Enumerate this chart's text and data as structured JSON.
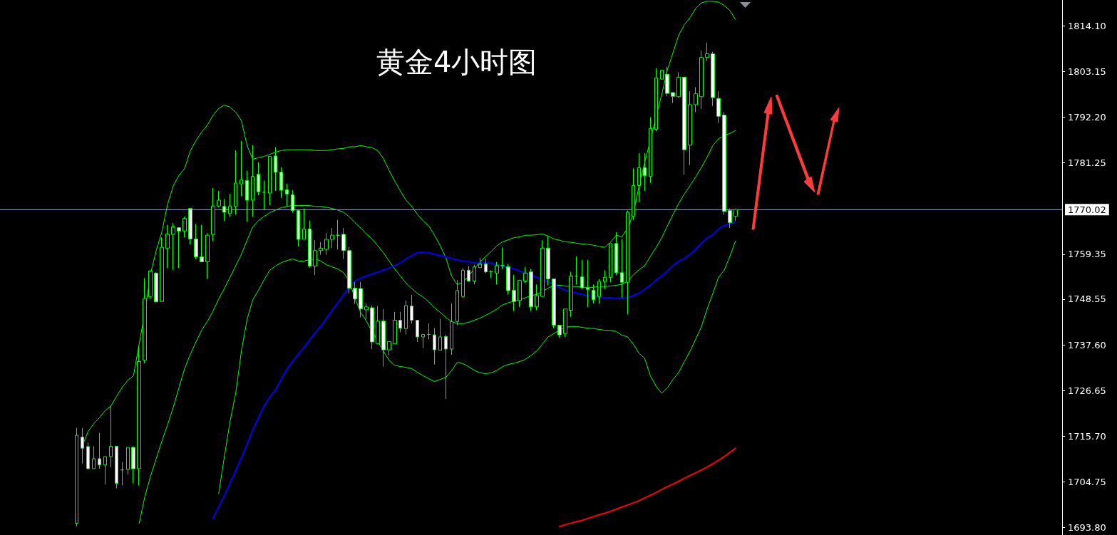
{
  "chart_data": {
    "type": "candlestick",
    "title": "黄金4小时图",
    "categories": [
      null,
      null,
      null,
      null,
      null,
      null,
      null,
      null,
      null,
      null,
      null,
      null,
      null,
      null,
      null,
      null,
      null,
      null,
      null,
      null,
      null,
      null,
      null,
      null,
      null,
      null,
      null,
      null,
      null,
      null,
      null,
      null,
      null,
      null,
      null,
      null,
      null,
      null,
      null,
      null,
      null,
      null,
      null,
      null,
      null,
      null,
      null,
      null,
      null,
      null,
      null,
      null,
      null,
      null,
      null,
      null,
      null,
      null,
      null,
      null,
      null,
      null,
      null,
      null,
      null,
      null,
      null,
      null,
      null,
      null,
      null,
      null,
      null,
      null,
      null,
      null,
      null,
      null,
      null,
      null,
      null,
      null,
      null,
      null,
      null,
      null,
      null,
      null,
      null,
      null,
      null,
      null,
      null,
      null,
      null,
      null,
      null,
      null,
      null,
      null,
      null,
      null,
      null,
      null,
      null,
      null,
      null,
      null,
      null,
      null,
      null,
      null,
      null,
      null,
      null,
      null,
      null
    ],
    "ohlc": [
      [
        1694.8,
        1717.7,
        1694.0,
        1715.9
      ],
      [
        1715.5,
        1717.7,
        1709.1,
        1712.8
      ],
      [
        1713.2,
        1714.2,
        1707.8,
        1707.9
      ],
      [
        1707.9,
        1713.3,
        1707.9,
        1710.3
      ],
      [
        1710.3,
        1716.5,
        1707.9,
        1708.8
      ],
      [
        1708.8,
        1710.8,
        1704.1,
        1710.8
      ],
      [
        1710.8,
        1722.9,
        1708.2,
        1713.3
      ],
      [
        1713.3,
        1713.3,
        1703.2,
        1704.4
      ],
      [
        1707.6,
        1709.5,
        1703.9,
        1707.6
      ],
      [
        1707.7,
        1713.0,
        1706.5,
        1713.0
      ],
      [
        1713.0,
        1713.3,
        1704.4,
        1707.9
      ],
      [
        1707.9,
        1737.4,
        1703.9,
        1733.6
      ],
      [
        1733.9,
        1753.6,
        1733.2,
        1748.7
      ],
      [
        1749.2,
        1755.5,
        1748.7,
        1755.3
      ],
      [
        1754.8,
        1755.0,
        1747.9,
        1747.9
      ],
      [
        1748.0,
        1763.4,
        1748.0,
        1761.0
      ],
      [
        1760.8,
        1766.4,
        1756.0,
        1764.2
      ],
      [
        1764.1,
        1766.8,
        1755.6,
        1765.9
      ],
      [
        1765.7,
        1765.7,
        1756.0,
        1764.9
      ],
      [
        1764.9,
        1768.4,
        1763.4,
        1767.9
      ],
      [
        1770.3,
        1770.3,
        1761.7,
        1763.0
      ],
      [
        1763.0,
        1766.6,
        1758.2,
        1758.7
      ],
      [
        1758.7,
        1766.4,
        1757.5,
        1757.5
      ],
      [
        1757.5,
        1764.4,
        1753.4,
        1763.9
      ],
      [
        1764.1,
        1775.2,
        1762.5,
        1770.9
      ],
      [
        1770.9,
        1774.5,
        1770.6,
        1772.3
      ],
      [
        1770.8,
        1772.6,
        1767.3,
        1769.4
      ],
      [
        1769.1,
        1773.8,
        1768.3,
        1770.9
      ],
      [
        1770.8,
        1784.3,
        1768.8,
        1776.4
      ],
      [
        1776.2,
        1786.5,
        1773.3,
        1777.2
      ],
      [
        1777.0,
        1779.4,
        1767.2,
        1772.3
      ],
      [
        1772.3,
        1785.5,
        1768.3,
        1778.0
      ],
      [
        1778.5,
        1781.4,
        1773.5,
        1774.3
      ],
      [
        1774.2,
        1777.0,
        1770.1,
        1774.2
      ],
      [
        1774.0,
        1782.8,
        1771.1,
        1782.8
      ],
      [
        1782.9,
        1785.0,
        1774.5,
        1779.0
      ],
      [
        1779.0,
        1780.2,
        1772.8,
        1774.7
      ],
      [
        1774.8,
        1776.2,
        1770.9,
        1773.8
      ],
      [
        1773.6,
        1774.7,
        1769.3,
        1769.8
      ],
      [
        1769.8,
        1769.8,
        1761.2,
        1762.9
      ],
      [
        1762.9,
        1770.3,
        1762.9,
        1765.4
      ],
      [
        1765.4,
        1767.4,
        1756.1,
        1756.5
      ],
      [
        1756.5,
        1762.7,
        1754.3,
        1760.2
      ],
      [
        1760.2,
        1762.2,
        1759.2,
        1760.8
      ],
      [
        1760.5,
        1764.4,
        1759.2,
        1762.9
      ],
      [
        1762.9,
        1765.6,
        1760.8,
        1763.9
      ],
      [
        1763.9,
        1767.6,
        1760.5,
        1763.9
      ],
      [
        1764.1,
        1765.6,
        1758.2,
        1760.2
      ],
      [
        1760.2,
        1761.0,
        1750.0,
        1751.2
      ],
      [
        1751.2,
        1752.7,
        1747.4,
        1748.6
      ],
      [
        1751.1,
        1752.7,
        1744.2,
        1746.2
      ],
      [
        1746.0,
        1747.5,
        1743.7,
        1746.7
      ],
      [
        1746.5,
        1747.0,
        1736.6,
        1738.3
      ],
      [
        1737.9,
        1746.9,
        1737.9,
        1743.3
      ],
      [
        1743.3,
        1746.2,
        1732.4,
        1736.4
      ],
      [
        1736.4,
        1738.4,
        1735.1,
        1738.4
      ],
      [
        1737.9,
        1745.5,
        1737.9,
        1743.5
      ],
      [
        1743.5,
        1745.5,
        1740.6,
        1741.6
      ],
      [
        1741.5,
        1748.2,
        1740.1,
        1747.0
      ],
      [
        1746.9,
        1749.6,
        1742.7,
        1743.5
      ],
      [
        1743.5,
        1743.5,
        1738.3,
        1739.5
      ],
      [
        1739.5,
        1740.1,
        1736.8,
        1740.1
      ],
      [
        1740.1,
        1742.7,
        1738.9,
        1740.1
      ],
      [
        1740.0,
        1741.6,
        1732.9,
        1736.4
      ],
      [
        1736.3,
        1743.8,
        1736.3,
        1739.5
      ],
      [
        1739.6,
        1740.0,
        1724.6,
        1736.6
      ],
      [
        1736.6,
        1747.5,
        1735.2,
        1743.2
      ],
      [
        1743.2,
        1753.1,
        1742.3,
        1750.6
      ],
      [
        1749.2,
        1756.0,
        1748.9,
        1755.5
      ],
      [
        1755.5,
        1756.5,
        1752.9,
        1752.9
      ],
      [
        1752.9,
        1756.8,
        1752.1,
        1756.3
      ],
      [
        1756.1,
        1758.5,
        1756.1,
        1757.0
      ],
      [
        1757.0,
        1758.3,
        1754.8,
        1755.1
      ],
      [
        1755.1,
        1755.5,
        1753.6,
        1755.1
      ],
      [
        1754.8,
        1757.5,
        1752.1,
        1756.6
      ],
      [
        1756.6,
        1761.0,
        1755.8,
        1756.6
      ],
      [
        1756.3,
        1757.0,
        1749.7,
        1750.6
      ],
      [
        1750.7,
        1754.4,
        1745.7,
        1748.0
      ],
      [
        1748.2,
        1753.1,
        1746.7,
        1753.1
      ],
      [
        1752.9,
        1756.3,
        1752.4,
        1754.8
      ],
      [
        1755.1,
        1755.8,
        1745.7,
        1746.7
      ],
      [
        1746.7,
        1752.1,
        1745.9,
        1749.4
      ],
      [
        1749.2,
        1762.7,
        1749.2,
        1760.8
      ],
      [
        1760.8,
        1763.6,
        1751.9,
        1753.4
      ],
      [
        1753.4,
        1753.4,
        1741.6,
        1742.3
      ],
      [
        1742.3,
        1742.3,
        1739.3,
        1740.0
      ],
      [
        1740.3,
        1746.2,
        1739.5,
        1746.2
      ],
      [
        1745.9,
        1755.1,
        1744.3,
        1754.1
      ],
      [
        1754.1,
        1758.8,
        1752.1,
        1754.1
      ],
      [
        1753.9,
        1758.0,
        1751.0,
        1751.3
      ],
      [
        1751.3,
        1758.0,
        1746.7,
        1750.9
      ],
      [
        1750.7,
        1752.1,
        1747.5,
        1748.4
      ],
      [
        1749.2,
        1753.4,
        1747.5,
        1752.8
      ],
      [
        1752.8,
        1755.5,
        1751.0,
        1753.8
      ],
      [
        1753.8,
        1761.9,
        1752.6,
        1761.9
      ],
      [
        1761.9,
        1764.6,
        1754.3,
        1754.9
      ],
      [
        1754.9,
        1762.9,
        1748.9,
        1752.6
      ],
      [
        1752.6,
        1769.8,
        1744.9,
        1769.4
      ],
      [
        1768.4,
        1779.9,
        1767.6,
        1775.8
      ],
      [
        1775.8,
        1783.6,
        1771.8,
        1780.1
      ],
      [
        1780.1,
        1783.6,
        1774.5,
        1778.2
      ],
      [
        1778.0,
        1792.2,
        1776.4,
        1789.5
      ],
      [
        1789.3,
        1804.0,
        1788.8,
        1801.6
      ],
      [
        1801.3,
        1803.5,
        1801.3,
        1803.5
      ],
      [
        1802.5,
        1804.3,
        1797.2,
        1797.9
      ],
      [
        1798.1,
        1798.1,
        1795.6,
        1797.2
      ],
      [
        1797.1,
        1803.0,
        1796.9,
        1801.8
      ],
      [
        1801.8,
        1801.8,
        1778.4,
        1784.4
      ],
      [
        1785.5,
        1798.4,
        1780.7,
        1795.2
      ],
      [
        1795.2,
        1799.4,
        1793.4,
        1797.8
      ],
      [
        1797.1,
        1808.2,
        1794.2,
        1806.5
      ],
      [
        1806.5,
        1810.1,
        1805.7,
        1807.4
      ],
      [
        1807.4,
        1807.9,
        1794.9,
        1796.9
      ],
      [
        1796.7,
        1798.4,
        1790.8,
        1792.4
      ],
      [
        1792.7,
        1793.4,
        1768.8,
        1769.6
      ],
      [
        1769.8,
        1770.3,
        1765.6,
        1766.9
      ],
      [
        1768.4,
        1770.3,
        1767.3,
        1770.1
      ]
    ],
    "series": [
      {
        "type": "line",
        "color": "#00ff00",
        "values": [
          null,
          1713.4,
          1716.8,
          1718.7,
          1720.1,
          1721.8,
          1722.9,
          1725.2,
          1727.4,
          1729.1,
          1730.2,
          1737.8,
          1745.4,
          1754.6,
          1760.2,
          1764.7,
          1771.3,
          1775.7,
          1778.2,
          1779.9,
          1784.1,
          1786.6,
          1788.6,
          1790.3,
          1792.6,
          1794.3,
          1795.1,
          1794.6,
          1793.4,
          1791.4,
          1785.4,
          1782.1,
          1782.5,
          1782.8,
          1783.3,
          1783.8,
          1784.2,
          1784.4,
          1784.4,
          1784.4,
          1784.4,
          1784.4,
          1784.2,
          1784.2,
          1784.2,
          1784.4,
          1784.6,
          1784.7,
          1785.1,
          1785.1,
          1785.4,
          1785.1,
          1784.9,
          1784.2,
          1782.3,
          1779.4,
          1776.9,
          1774.5,
          1772.3,
          1770.8,
          1768.9,
          1767.3,
          1766.1,
          1763.9,
          1761.4,
          1758.5,
          1754.1,
          1752.1,
          1752.6,
          1754.1,
          1755.8,
          1757.5,
          1758.8,
          1760.0,
          1761.4,
          1762.3,
          1762.8,
          1763.3,
          1763.5,
          1763.9,
          1763.9,
          1764.0,
          1764.2,
          1763.7,
          1763.0,
          1762.7,
          1762.3,
          1762.2,
          1762.0,
          1761.8,
          1761.7,
          1761.5,
          1761.2,
          1761.0,
          1762.2,
          1763.9,
          1763.5,
          1765.6,
          1768.9,
          1775.7,
          1781.3,
          1786.6,
          1792.2,
          1797.6,
          1803.5,
          1807.7,
          1811.9,
          1814.4,
          1816.1,
          1818.3,
          1819.6,
          1820.0,
          1820.0,
          1819.8,
          1819.0,
          1817.8,
          1815.6
        ]
      },
      {
        "type": "line",
        "color": "#00ff00",
        "values": [
          null,
          null,
          null,
          null,
          null,
          null,
          null,
          null,
          null,
          null,
          null,
          1694.8,
          1701.2,
          1706.1,
          1710.3,
          1714.5,
          1718.4,
          1722.6,
          1727.3,
          1731.9,
          1735.3,
          1738.3,
          1741.1,
          1743.2,
          1745.7,
          1748.6,
          1751.1,
          1753.8,
          1756.6,
          1759.3,
          1762.7,
          1765.9,
          1767.4,
          1768.4,
          1769.3,
          1769.9,
          1770.5,
          1770.8,
          1771.0,
          1771.0,
          1771.0,
          1771.0,
          1770.8,
          1770.8,
          1770.6,
          1770.3,
          1769.9,
          1769.4,
          1768.3,
          1766.9,
          1765.6,
          1764.2,
          1763.0,
          1761.4,
          1759.7,
          1757.7,
          1755.8,
          1754.1,
          1752.4,
          1751.1,
          1749.9,
          1749.1,
          1747.9,
          1746.5,
          1745.4,
          1744.2,
          1743.2,
          1742.7,
          1742.7,
          1743.0,
          1743.5,
          1744.0,
          1744.7,
          1745.4,
          1746.2,
          1747.2,
          1747.7,
          1748.1,
          1748.4,
          1748.9,
          1749.4,
          1749.7,
          1750.4,
          1751.2,
          1751.9,
          1751.9,
          1751.7,
          1751.6,
          1751.6,
          1751.4,
          1751.4,
          1751.4,
          1751.6,
          1751.6,
          1751.7,
          1751.9,
          1752.1,
          1752.9,
          1754.4,
          1755.6,
          1756.6,
          1758.8,
          1760.9,
          1763.3,
          1766.1,
          1768.9,
          1771.5,
          1773.8,
          1775.8,
          1777.9,
          1780.2,
          1782.6,
          1785.4,
          1787.0,
          1787.8,
          1788.3,
          1789.0
        ]
      },
      {
        "type": "line",
        "color": "#00ff00",
        "values": [
          null,
          null,
          null,
          null,
          null,
          null,
          null,
          null,
          null,
          null,
          null,
          null,
          null,
          null,
          null,
          null,
          null,
          null,
          null,
          null,
          null,
          null,
          null,
          null,
          null,
          1701.9,
          1710.8,
          1719.2,
          1726.0,
          1736.1,
          1743.7,
          1748.4,
          1750.7,
          1753.2,
          1755.5,
          1756.5,
          1757.3,
          1757.8,
          1758.2,
          1757.7,
          1757.7,
          1758.0,
          1758.2,
          1757.7,
          1756.8,
          1756.3,
          1755.8,
          1754.9,
          1752.9,
          1748.7,
          1745.4,
          1743.3,
          1740.8,
          1738.6,
          1736.1,
          1733.9,
          1732.7,
          1732.4,
          1732.2,
          1731.9,
          1731.0,
          1730.2,
          1729.5,
          1728.8,
          1729.3,
          1729.8,
          1731.4,
          1733.4,
          1733.1,
          1732.4,
          1731.5,
          1730.9,
          1730.7,
          1730.9,
          1731.5,
          1732.4,
          1732.9,
          1733.2,
          1733.6,
          1734.1,
          1735.1,
          1736.1,
          1737.8,
          1739.5,
          1740.3,
          1741.1,
          1741.8,
          1742.0,
          1742.0,
          1741.8,
          1741.6,
          1741.5,
          1741.3,
          1741.1,
          1741.1,
          1740.8,
          1739.9,
          1739.5,
          1737.8,
          1735.6,
          1734.4,
          1730.2,
          1727.7,
          1726.0,
          1727.3,
          1729.3,
          1731.0,
          1733.6,
          1736.1,
          1739.0,
          1742.0,
          1746.2,
          1749.9,
          1753.8,
          1755.5,
          1758.8,
          1762.5
        ]
      },
      {
        "type": "line",
        "color": "#0000ff",
        "values": [
          null,
          null,
          null,
          null,
          null,
          null,
          null,
          null,
          null,
          null,
          null,
          null,
          null,
          null,
          null,
          null,
          null,
          null,
          null,
          null,
          null,
          null,
          null,
          null,
          1696.0,
          1698.7,
          1701.5,
          1704.4,
          1707.4,
          1710.5,
          1713.7,
          1717.2,
          1720.1,
          1722.9,
          1725.1,
          1726.8,
          1729.3,
          1731.7,
          1733.6,
          1735.3,
          1736.9,
          1738.8,
          1740.5,
          1742.1,
          1744.0,
          1745.9,
          1747.7,
          1749.6,
          1751.6,
          1752.9,
          1753.6,
          1754.1,
          1754.6,
          1755.0,
          1755.5,
          1756.0,
          1756.6,
          1757.3,
          1758.2,
          1759.0,
          1759.7,
          1759.8,
          1759.7,
          1759.3,
          1759.0,
          1758.7,
          1758.3,
          1758.0,
          1757.7,
          1757.5,
          1757.3,
          1757.3,
          1757.2,
          1757.2,
          1756.8,
          1756.5,
          1756.1,
          1755.8,
          1755.3,
          1754.8,
          1754.3,
          1753.8,
          1753.2,
          1752.7,
          1752.1,
          1751.4,
          1750.7,
          1750.4,
          1750.0,
          1749.7,
          1749.4,
          1749.2,
          1749.1,
          1748.9,
          1748.9,
          1748.7,
          1748.7,
          1748.9,
          1749.4,
          1750.0,
          1750.9,
          1751.9,
          1753.1,
          1754.1,
          1755.3,
          1756.6,
          1757.7,
          1758.3,
          1759.3,
          1760.5,
          1762.0,
          1763.2,
          1764.0,
          1765.4,
          1766.2,
          1766.6,
          1767.1
        ]
      },
      {
        "type": "line",
        "color": "#ff0000",
        "values": [
          null,
          null,
          null,
          null,
          null,
          null,
          null,
          null,
          null,
          null,
          null,
          null,
          null,
          null,
          null,
          null,
          null,
          null,
          null,
          null,
          null,
          null,
          null,
          null,
          null,
          null,
          null,
          null,
          null,
          null,
          null,
          null,
          null,
          null,
          null,
          null,
          null,
          null,
          null,
          null,
          null,
          null,
          null,
          null,
          null,
          null,
          null,
          null,
          null,
          null,
          null,
          null,
          null,
          null,
          null,
          null,
          null,
          null,
          null,
          null,
          null,
          null,
          null,
          null,
          null,
          null,
          null,
          null,
          null,
          null,
          null,
          null,
          null,
          null,
          null,
          null,
          null,
          null,
          null,
          null,
          null,
          null,
          null,
          null,
          null,
          1694.0,
          1694.5,
          1694.8,
          1695.2,
          1695.5,
          1696.0,
          1696.4,
          1696.9,
          1697.2,
          1697.7,
          1698.2,
          1698.7,
          1699.2,
          1699.7,
          1700.2,
          1700.9,
          1701.5,
          1702.2,
          1702.9,
          1703.6,
          1704.2,
          1704.9,
          1705.6,
          1706.3,
          1706.9,
          1707.6,
          1708.3,
          1709.1,
          1709.9,
          1710.8,
          1711.8,
          1712.8
        ]
      }
    ],
    "ylim": [
      1692.0,
      1820.3
    ],
    "yticks": [
      {
        "value": 1693.8,
        "label": "1693.80"
      },
      {
        "value": 1704.75,
        "label": "1704.75"
      },
      {
        "value": 1715.7,
        "label": "1715.70"
      },
      {
        "value": 1726.65,
        "label": "1726.65"
      },
      {
        "value": 1737.6,
        "label": "1737.60"
      },
      {
        "value": 1748.55,
        "label": "1748.55"
      },
      {
        "value": 1759.35,
        "label": "1759.35"
      },
      {
        "value": 1781.25,
        "label": "1781.25"
      },
      {
        "value": 1792.2,
        "label": "1792.20"
      },
      {
        "value": 1803.15,
        "label": "1803.15"
      },
      {
        "value": 1814.1,
        "label": "1814.10"
      }
    ],
    "ref_lines": [
      {
        "axis": "y",
        "value": 1770.02,
        "label": "1770.02",
        "color": "#8c9fbf"
      }
    ],
    "tick_labels": "y",
    "grid": false
  }
}
